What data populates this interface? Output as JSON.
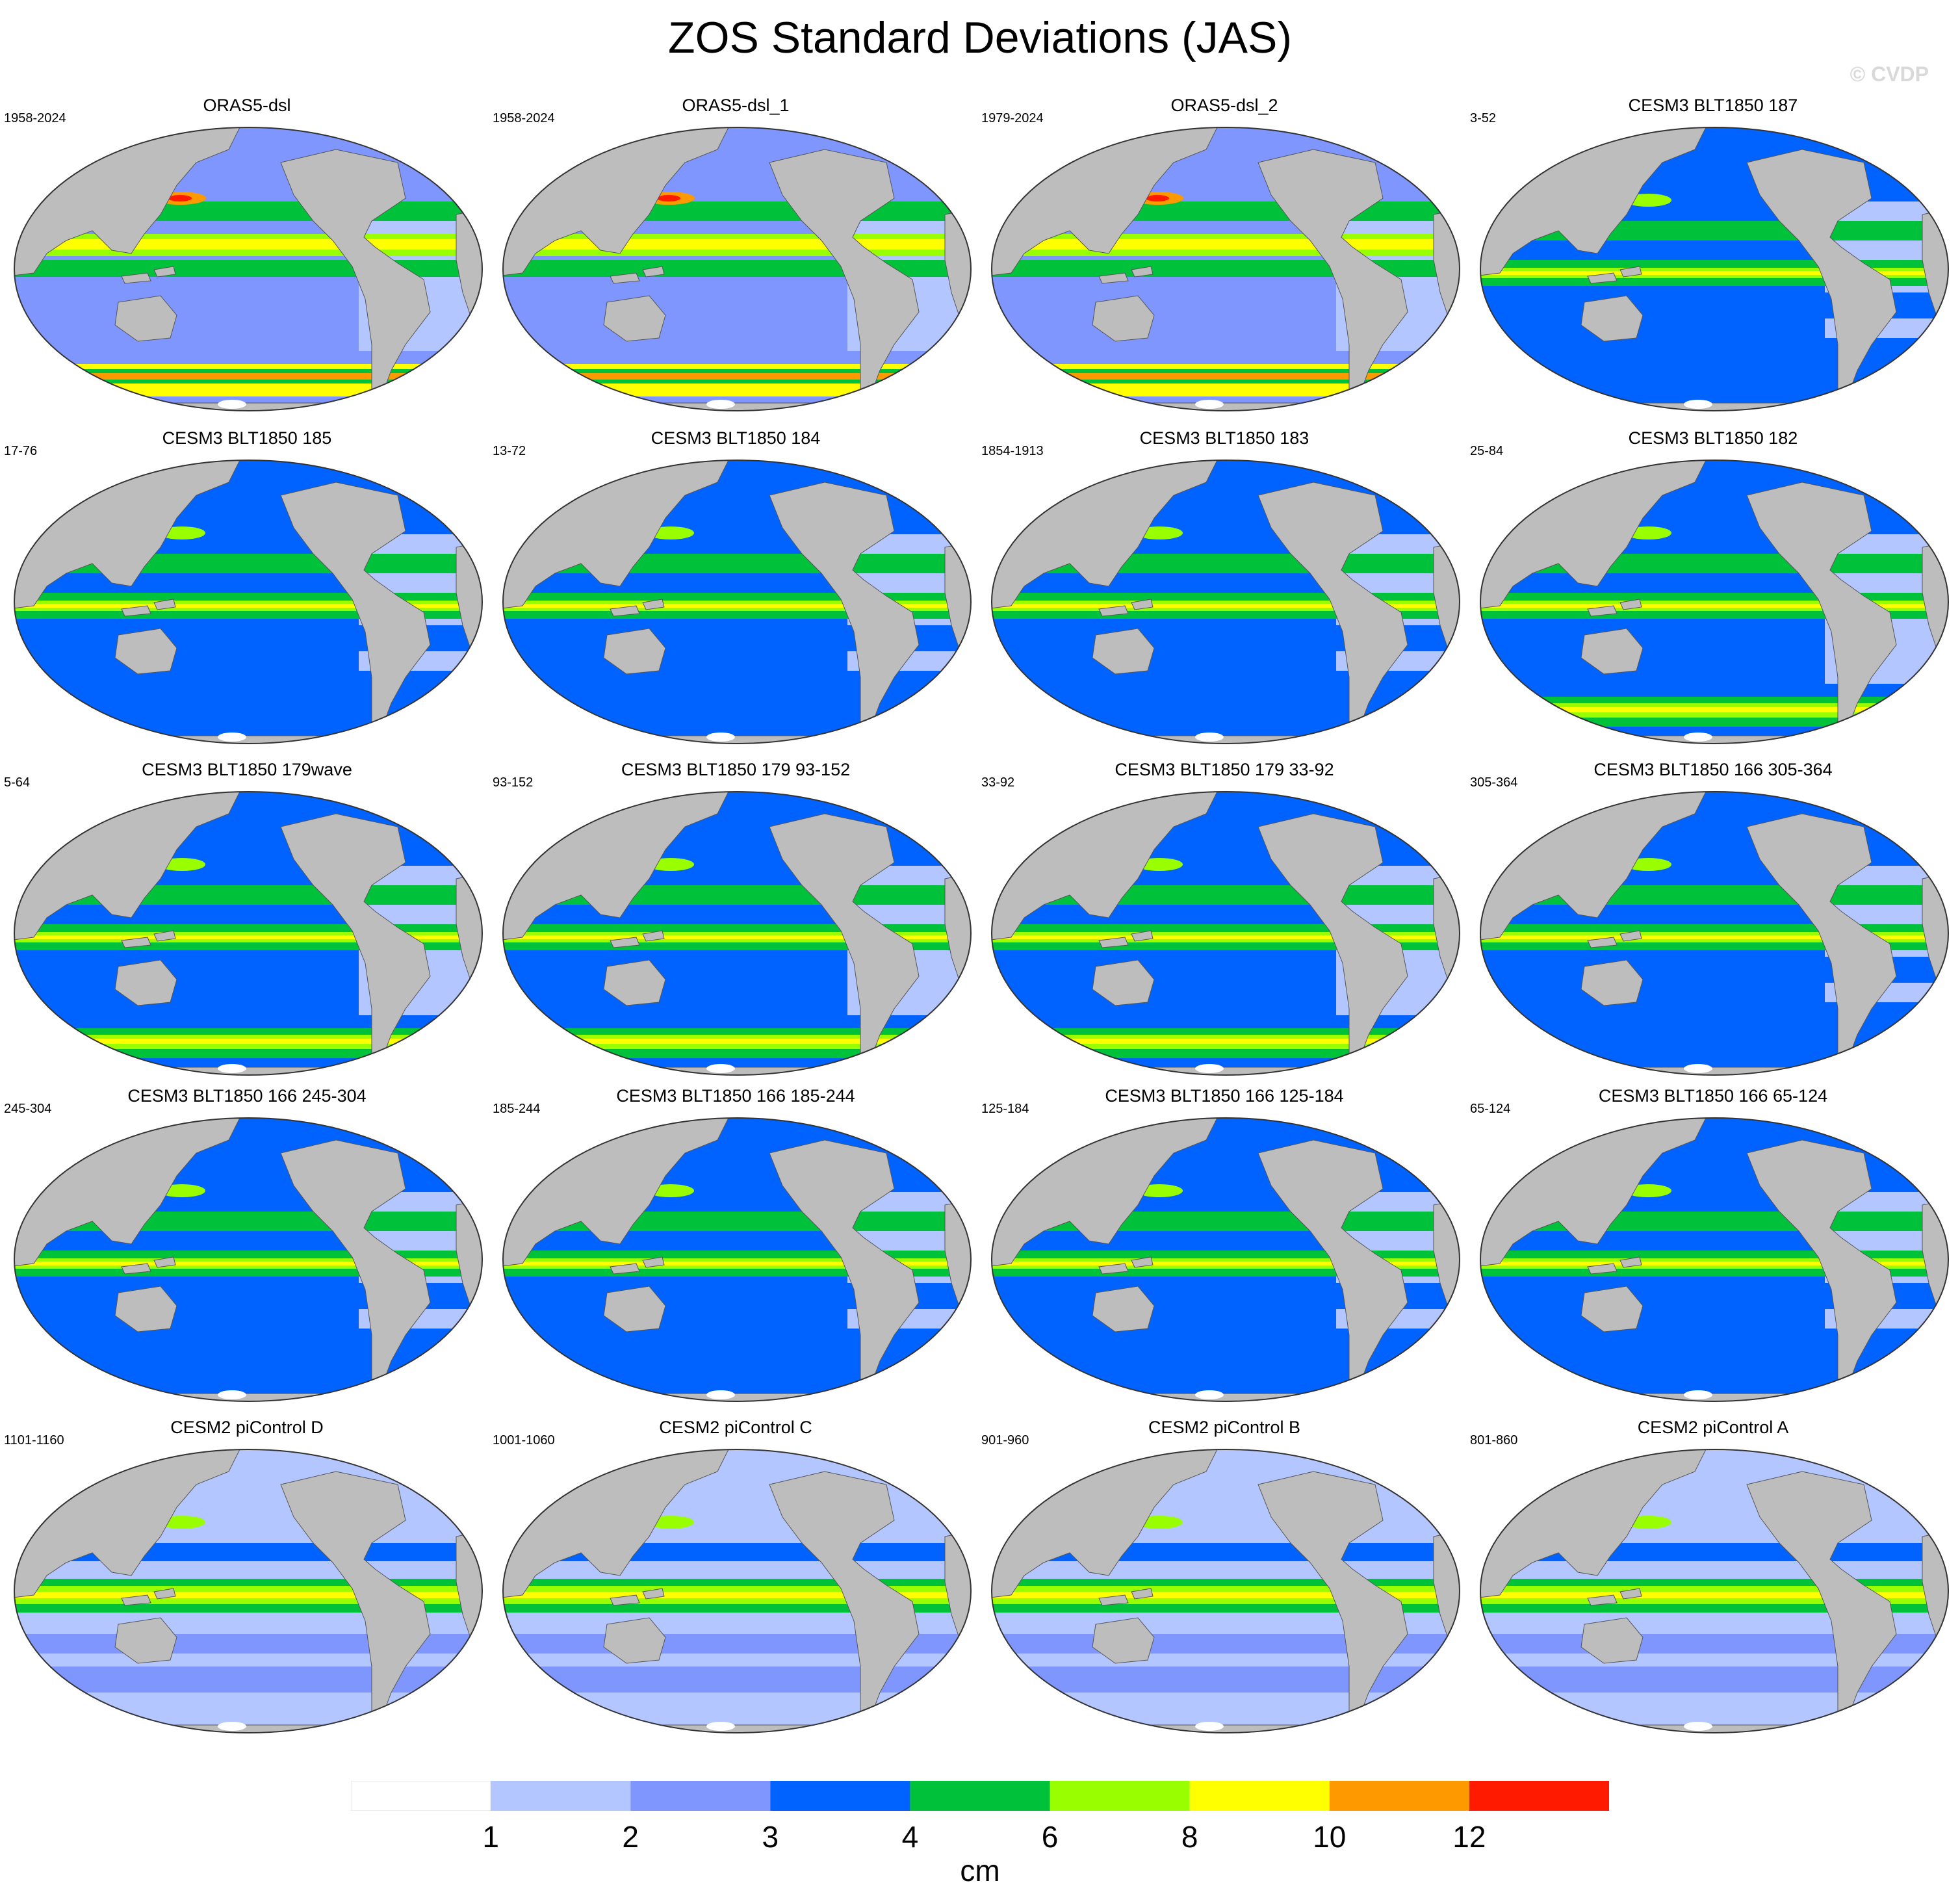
{
  "title": "ZOS Standard Deviations (JAS)",
  "watermark": "© CVDP",
  "colors": {
    "land": "#bdbdbd",
    "coast": "#555555",
    "levels": [
      "#ffffff",
      "#b3c6ff",
      "#7f96ff",
      "#0063ff",
      "#00c23a",
      "#99ff00",
      "#ffff00",
      "#ff9900",
      "#ff1a00"
    ]
  },
  "panels": [
    {
      "title": "ORAS5-dsl",
      "years": "1958-2024",
      "style": "obs"
    },
    {
      "title": "ORAS5-dsl_1",
      "years": "1958-2024",
      "style": "obs"
    },
    {
      "title": "ORAS5-dsl_2",
      "years": "1979-2024",
      "style": "obs"
    },
    {
      "title": "CESM3 BLT1850 187",
      "years": "3-52",
      "style": "model"
    },
    {
      "title": "CESM3 BLT1850 185",
      "years": "17-76",
      "style": "model"
    },
    {
      "title": "CESM3 BLT1850 184",
      "years": "13-72",
      "style": "model"
    },
    {
      "title": "CESM3 BLT1850 183",
      "years": "1854-1913",
      "style": "model"
    },
    {
      "title": "CESM3 BLT1850 182",
      "years": "25-84",
      "style": "modelso"
    },
    {
      "title": "CESM3 BLT1850 179wave",
      "years": "5-64",
      "style": "modelso"
    },
    {
      "title": "CESM3 BLT1850 179 93-152",
      "years": "93-152",
      "style": "modelso"
    },
    {
      "title": "CESM3 BLT1850 179 33-92",
      "years": "33-92",
      "style": "modelso"
    },
    {
      "title": "CESM3 BLT1850 166 305-364",
      "years": "305-364",
      "style": "model"
    },
    {
      "title": "CESM3 BLT1850 166 245-304",
      "years": "245-304",
      "style": "model"
    },
    {
      "title": "CESM3 BLT1850 166 185-244",
      "years": "185-244",
      "style": "model"
    },
    {
      "title": "CESM3 BLT1850 166 125-184",
      "years": "125-184",
      "style": "model"
    },
    {
      "title": "CESM3 BLT1850 166 65-124",
      "years": "65-124",
      "style": "model"
    },
    {
      "title": "CESM2 piControl D",
      "years": "1101-1160",
      "style": "pic"
    },
    {
      "title": "CESM2 piControl C",
      "years": "1001-1060",
      "style": "pic"
    },
    {
      "title": "CESM2 piControl B",
      "years": "901-960",
      "style": "pic"
    },
    {
      "title": "CESM2 piControl A",
      "years": "801-860",
      "style": "pic"
    }
  ],
  "colorbar": {
    "labels": [
      "1",
      "2",
      "3",
      "4",
      "6",
      "8",
      "10",
      "12"
    ],
    "units": "cm"
  }
}
